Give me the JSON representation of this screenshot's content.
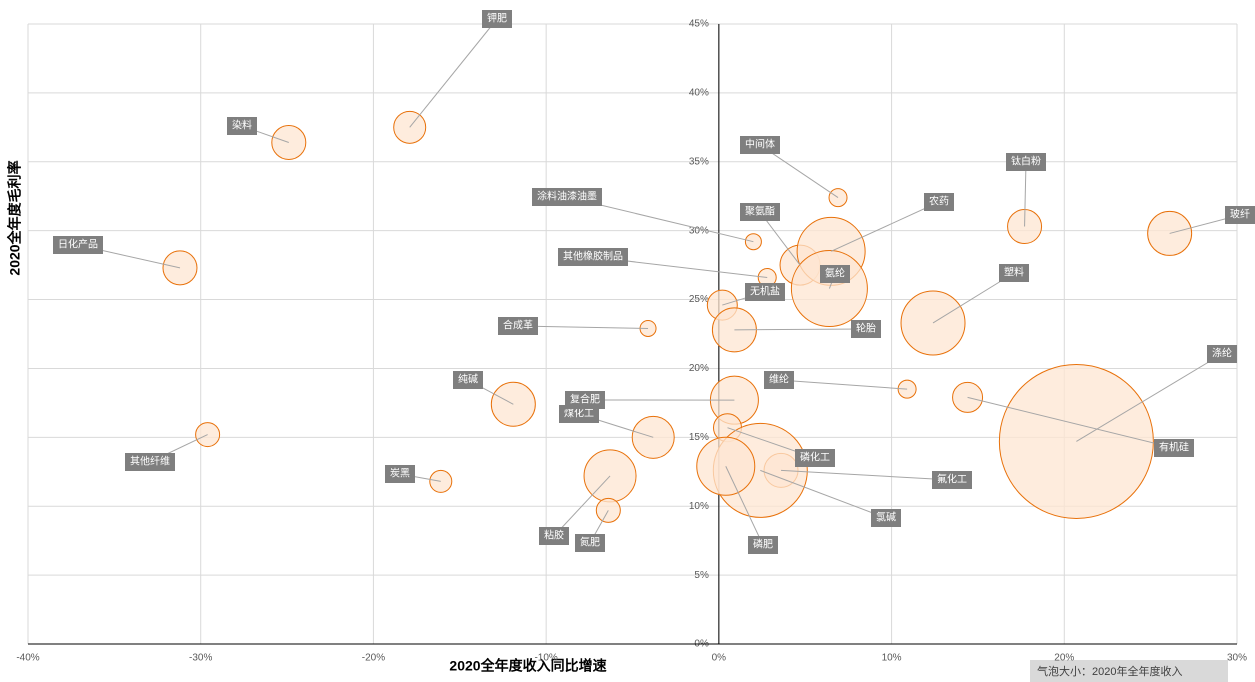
{
  "chart_data": {
    "type": "scatter",
    "x_label": "2020全年度收入同比增速",
    "y_label": "2020全年度毛利率",
    "note": "气泡大小：2020年全年度收入",
    "xlim": [
      -40,
      30
    ],
    "ylim": [
      0,
      45
    ],
    "xticks": [
      {
        "value": -40,
        "label": "-40%"
      },
      {
        "value": -30,
        "label": "-30%"
      },
      {
        "value": -20,
        "label": "-20%"
      },
      {
        "value": -10,
        "label": "-10%"
      },
      {
        "value": 0,
        "label": "0%"
      },
      {
        "value": 10,
        "label": "10%"
      },
      {
        "value": 20,
        "label": "20%"
      },
      {
        "value": 30,
        "label": "30%"
      }
    ],
    "yticks": [
      {
        "value": 0,
        "label": "0%"
      },
      {
        "value": 5,
        "label": "5%"
      },
      {
        "value": 10,
        "label": "10%"
      },
      {
        "value": 15,
        "label": "15%"
      },
      {
        "value": 20,
        "label": "20%"
      },
      {
        "value": 25,
        "label": "25%"
      },
      {
        "value": 30,
        "label": "30%"
      },
      {
        "value": 35,
        "label": "35%"
      },
      {
        "value": 40,
        "label": "40%"
      },
      {
        "value": 45,
        "label": "45%"
      }
    ],
    "grid": true,
    "color": "#e8710a",
    "fill": "#fde5d2",
    "series": [
      {
        "names": [
          "钾肥",
          "染料",
          "日化产品",
          "其他纤维",
          "炭黑",
          "纯碱",
          "合成革",
          "涂料油漆油墨",
          "其他橡胶制品",
          "煤化工",
          "复合肥",
          "粘胶",
          "氮肥",
          "中间体",
          "聚氨酯",
          "农药",
          "氨纶",
          "无机盐",
          "轮胎",
          "维纶",
          "钛白粉",
          "玻纤",
          "塑料",
          "涤纶",
          "有机硅",
          "磷化工",
          "氟化工",
          "氯碱",
          "磷肥"
        ],
        "x": [
          -17.9,
          -24.9,
          -31.2,
          -29.6,
          -16.1,
          -11.9,
          -4.1,
          2.0,
          2.8,
          -3.8,
          0.9,
          -6.3,
          -6.4,
          6.9,
          4.7,
          6.5,
          6.4,
          0.2,
          0.9,
          10.9,
          17.7,
          26.1,
          12.4,
          20.7,
          14.4,
          0.5,
          3.6,
          2.4,
          0.4
        ],
        "values": [
          37.5,
          36.4,
          27.3,
          15.2,
          11.8,
          17.4,
          22.9,
          29.2,
          26.6,
          15.0,
          17.7,
          12.2,
          9.7,
          32.4,
          27.5,
          28.5,
          25.8,
          24.6,
          22.8,
          18.5,
          30.3,
          29.8,
          23.3,
          14.7,
          17.9,
          15.7,
          12.6,
          12.6,
          12.9
        ],
        "sizes": [
          256,
          289,
          289,
          144,
          121,
          484,
          64,
          64,
          81,
          441,
          576,
          676,
          144,
          81,
          400,
          1156,
          1444,
          225,
          484,
          81,
          289,
          484,
          1024,
          5929,
          225,
          196,
          289,
          2209,
          841
        ]
      }
    ]
  }
}
